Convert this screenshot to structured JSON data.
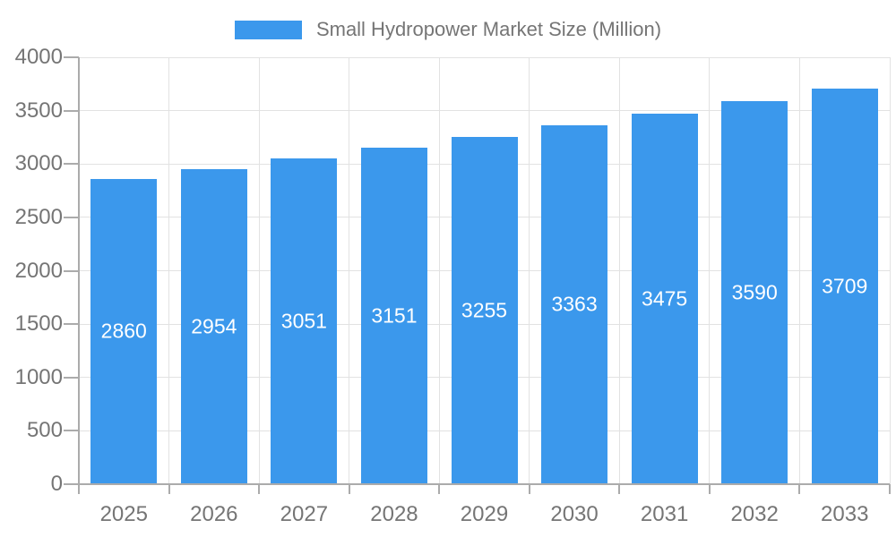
{
  "chart_data": {
    "type": "bar",
    "title": "Small Hydropower Market Size (Million)",
    "categories": [
      "2025",
      "2026",
      "2027",
      "2028",
      "2029",
      "2030",
      "2031",
      "2032",
      "2033"
    ],
    "values": [
      2860,
      2954,
      3051,
      3151,
      3255,
      3363,
      3475,
      3590,
      3709
    ],
    "value_labels": [
      "2860",
      "2954",
      "3051",
      "3151",
      "3255",
      "3363",
      "3475",
      "3590",
      "3709"
    ],
    "xlabel": "",
    "ylabel": "",
    "ylim": [
      0,
      4000
    ],
    "ytick_interval": 500,
    "ytick_labels": [
      "0",
      "500",
      "1000",
      "1500",
      "2000",
      "2500",
      "3000",
      "3500",
      "4000"
    ],
    "grid": true,
    "legend_position": "top",
    "colors": {
      "bar": "#3b98ec",
      "value_label": "#ffffff",
      "axis_label": "#757575",
      "legend_text": "#757575",
      "grid_line": "#e2e2e2",
      "axis_line": "#ababab",
      "background": "#ffffff"
    }
  }
}
